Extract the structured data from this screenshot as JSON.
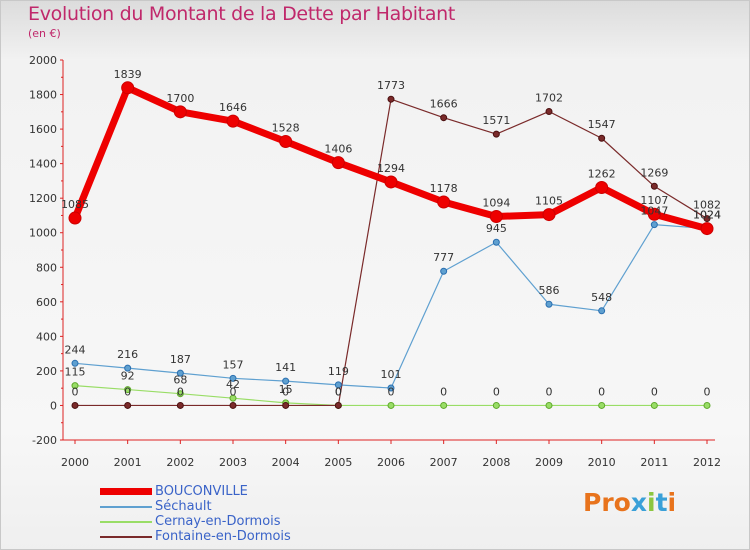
{
  "title": "Evolution du Montant de la Dette par Habitant",
  "subtitle": "(en €)",
  "logo_text": "Proxiti",
  "logo_colors": [
    "#e8731c",
    "#e8731c",
    "#e8731c",
    "#3aa0d8",
    "#8cc63f",
    "#3aa0d8",
    "#e8731c"
  ],
  "chart_data": {
    "type": "line",
    "title": "Evolution du Montant de la Dette par Habitant",
    "subtitle": "(en €)",
    "xlabel": "",
    "ylabel": "",
    "x": [
      "2000",
      "2001",
      "2002",
      "2003",
      "2004",
      "2005",
      "2006",
      "2007",
      "2008",
      "2009",
      "2010",
      "2011",
      "2012"
    ],
    "ylim": [
      -200,
      2000
    ],
    "yticks": [
      -200,
      0,
      200,
      400,
      600,
      800,
      1000,
      1200,
      1400,
      1600,
      1800,
      2000
    ],
    "grid": false,
    "legend_position": "bottom-left",
    "series": [
      {
        "name": "BOUCONVILLE",
        "color": "#ee0000",
        "values": [
          1085,
          1839,
          1700,
          1646,
          1528,
          1406,
          1294,
          1178,
          1094,
          1105,
          1262,
          1107,
          1024
        ],
        "labels": [
          "1085",
          "1839",
          "1700",
          "1646",
          "1528",
          "1406",
          "1294",
          "1178",
          "1094",
          "1105",
          "1262",
          "1107",
          "1024"
        ]
      },
      {
        "name": "Séchault",
        "color": "#5fa0d0",
        "values": [
          244,
          216,
          187,
          157,
          141,
          119,
          101,
          777,
          945,
          586,
          548,
          1047,
          1024
        ],
        "labels": [
          "244",
          "216",
          "187",
          "157",
          "141",
          "119",
          "101",
          "777",
          "945",
          "586",
          "548",
          "1047",
          "1024"
        ]
      },
      {
        "name": "Cernay-en-Dormois",
        "color": "#99dd66",
        "values": [
          115,
          92,
          68,
          42,
          15,
          0,
          0,
          0,
          0,
          0,
          0,
          0,
          0
        ],
        "labels": [
          "115",
          "92",
          "68",
          "42",
          "15",
          "0",
          "0",
          "0",
          "0",
          "0",
          "0",
          "0",
          "0"
        ]
      },
      {
        "name": "Fontaine-en-Dormois",
        "color": "#7a2a2a",
        "values": [
          0,
          0,
          0,
          0,
          0,
          0,
          1773,
          1666,
          1571,
          1702,
          1547,
          1269,
          1082
        ],
        "labels": [
          "0",
          "0",
          "0",
          "0",
          "0",
          "0",
          "1773",
          "1666",
          "1571",
          "1702",
          "1547",
          "1269",
          "1082"
        ]
      }
    ]
  }
}
